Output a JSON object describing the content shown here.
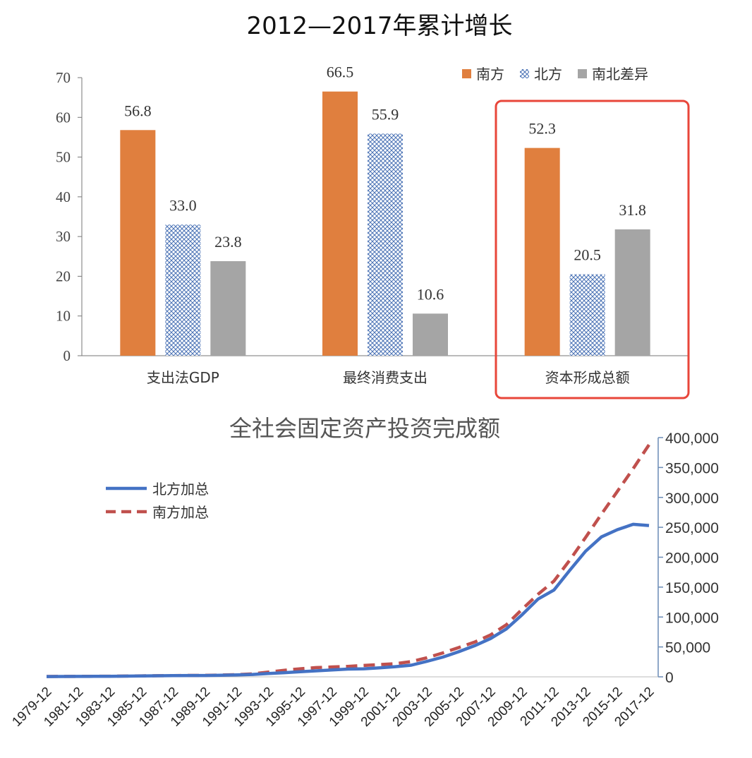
{
  "chart_data": [
    {
      "type": "bar",
      "title": "2012—2017年累计增长",
      "categories": [
        "支出法GDP",
        "最终消费支出",
        "资本形成总额"
      ],
      "series": [
        {
          "name": "南方",
          "values": [
            56.8,
            66.5,
            52.3
          ],
          "color": "#E07F3E",
          "pattern": "solid"
        },
        {
          "name": "北方",
          "values": [
            33.0,
            55.9,
            20.5
          ],
          "color": "#4A72B5",
          "pattern": "crosshatch"
        },
        {
          "name": "南北差异",
          "values": [
            23.8,
            10.6,
            31.8
          ],
          "color": "#A5A5A5",
          "pattern": "solid"
        }
      ],
      "data_labels": [
        [
          "56.8",
          "33.0",
          "23.8"
        ],
        [
          "66.5",
          "55.9",
          "10.6"
        ],
        [
          "52.3",
          "20.5",
          "31.8"
        ]
      ],
      "ylim": [
        0,
        70
      ],
      "yticks": [
        "0",
        "10",
        "20",
        "30",
        "40",
        "50",
        "60",
        "70"
      ],
      "legend_position": "top-right",
      "highlight_category": "资本形成总额",
      "highlight_color": "#E8463A"
    },
    {
      "type": "line",
      "title": "全社会固定资产投资完成额",
      "x": [
        "1979-12",
        "1980-12",
        "1981-12",
        "1982-12",
        "1983-12",
        "1984-12",
        "1985-12",
        "1986-12",
        "1987-12",
        "1988-12",
        "1989-12",
        "1990-12",
        "1991-12",
        "1992-12",
        "1993-12",
        "1994-12",
        "1995-12",
        "1996-12",
        "1997-12",
        "1998-12",
        "1999-12",
        "2000-12",
        "2001-12",
        "2002-12",
        "2003-12",
        "2004-12",
        "2005-12",
        "2006-12",
        "2007-12",
        "2008-12",
        "2009-12",
        "2010-12",
        "2011-12",
        "2012-12",
        "2013-12",
        "2014-12",
        "2015-12",
        "2016-12",
        "2017-12"
      ],
      "xticks": [
        "1979-12",
        "1981-12",
        "1983-12",
        "1985-12",
        "1987-12",
        "1989-12",
        "1991-12",
        "1993-12",
        "1995-12",
        "1997-12",
        "1999-12",
        "2001-12",
        "2003-12",
        "2005-12",
        "2007-12",
        "2009-12",
        "2011-12",
        "2013-12",
        "2015-12",
        "2017-12"
      ],
      "series": [
        {
          "name": "北方加总",
          "color": "#4472C4",
          "dash": "solid",
          "values": [
            500,
            600,
            700,
            800,
            1000,
            1200,
            1500,
            1800,
            2000,
            2200,
            2300,
            2700,
            3200,
            4000,
            5500,
            7000,
            8500,
            10000,
            11500,
            13000,
            13500,
            15000,
            17000,
            19500,
            26000,
            33000,
            42000,
            52000,
            64000,
            80000,
            104000,
            130000,
            145000,
            178000,
            210000,
            234000,
            246000,
            255000,
            253000
          ]
        },
        {
          "name": "南方加总",
          "color": "#C0504D",
          "dash": "dashed",
          "values": [
            600,
            700,
            800,
            900,
            1100,
            1300,
            1600,
            1900,
            2100,
            2400,
            2500,
            3000,
            3700,
            5000,
            8000,
            11000,
            13500,
            15500,
            16500,
            17500,
            19000,
            20500,
            22000,
            25500,
            32000,
            40000,
            49000,
            58000,
            70000,
            87000,
            113000,
            138000,
            160000,
            195000,
            233000,
            272000,
            310000,
            348000,
            388000
          ]
        }
      ],
      "ylim": [
        0,
        400000
      ],
      "yticks": [
        "0",
        "50,000",
        "100,000",
        "150,000",
        "200,000",
        "250,000",
        "300,000",
        "350,000",
        "400,000"
      ],
      "yaxis_side": "right",
      "legend_position": "top-left"
    }
  ]
}
